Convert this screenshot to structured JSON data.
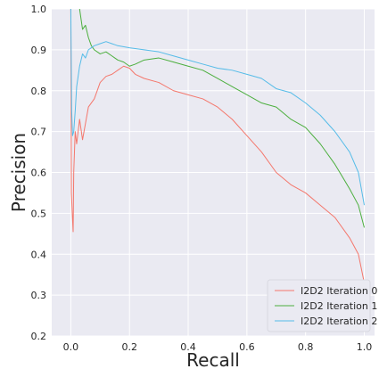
{
  "chart_data": {
    "type": "line",
    "title": "",
    "xlabel": "Recall",
    "ylabel": "Precision",
    "xlim": [
      -0.065,
      1.035
    ],
    "ylim": [
      0.2,
      1.0
    ],
    "x_ticks": [
      0.0,
      0.2,
      0.4,
      0.6,
      0.8,
      1.0
    ],
    "x_tick_labels": [
      "0.0",
      "0.2",
      "0.4",
      "0.6",
      "0.8",
      "1.0"
    ],
    "y_ticks": [
      0.2,
      0.3,
      0.4,
      0.5,
      0.6,
      0.7,
      0.8,
      0.9,
      1.0
    ],
    "y_tick_labels": [
      "0.2",
      "0.3",
      "0.4",
      "0.5",
      "0.6",
      "0.7",
      "0.8",
      "0.9",
      "1.0"
    ],
    "grid": true,
    "background": "#eaeaf2",
    "legend_position": "bottom-right",
    "series": [
      {
        "name": "I2D2 Iteration 0",
        "color": "#f4776c",
        "points": [
          [
            0.0,
            1.0
          ],
          [
            0.002,
            0.55
          ],
          [
            0.005,
            0.5
          ],
          [
            0.008,
            0.455
          ],
          [
            0.01,
            0.6
          ],
          [
            0.015,
            0.7
          ],
          [
            0.02,
            0.67
          ],
          [
            0.03,
            0.73
          ],
          [
            0.04,
            0.68
          ],
          [
            0.05,
            0.72
          ],
          [
            0.06,
            0.76
          ],
          [
            0.08,
            0.78
          ],
          [
            0.1,
            0.82
          ],
          [
            0.12,
            0.835
          ],
          [
            0.14,
            0.84
          ],
          [
            0.16,
            0.85
          ],
          [
            0.18,
            0.86
          ],
          [
            0.2,
            0.855
          ],
          [
            0.22,
            0.84
          ],
          [
            0.25,
            0.83
          ],
          [
            0.3,
            0.82
          ],
          [
            0.35,
            0.8
          ],
          [
            0.4,
            0.79
          ],
          [
            0.45,
            0.78
          ],
          [
            0.5,
            0.76
          ],
          [
            0.55,
            0.73
          ],
          [
            0.6,
            0.69
          ],
          [
            0.65,
            0.65
          ],
          [
            0.7,
            0.6
          ],
          [
            0.75,
            0.57
          ],
          [
            0.8,
            0.55
          ],
          [
            0.85,
            0.52
          ],
          [
            0.9,
            0.49
          ],
          [
            0.95,
            0.44
          ],
          [
            0.98,
            0.4
          ],
          [
            1.0,
            0.33
          ]
        ]
      },
      {
        "name": "I2D2 Iteration 1",
        "color": "#4caf3e",
        "points": [
          [
            0.03,
            1.0
          ],
          [
            0.04,
            0.95
          ],
          [
            0.05,
            0.96
          ],
          [
            0.06,
            0.93
          ],
          [
            0.07,
            0.91
          ],
          [
            0.08,
            0.9
          ],
          [
            0.1,
            0.89
          ],
          [
            0.12,
            0.895
          ],
          [
            0.14,
            0.885
          ],
          [
            0.16,
            0.875
          ],
          [
            0.18,
            0.87
          ],
          [
            0.2,
            0.86
          ],
          [
            0.22,
            0.865
          ],
          [
            0.25,
            0.875
          ],
          [
            0.3,
            0.88
          ],
          [
            0.35,
            0.87
          ],
          [
            0.4,
            0.86
          ],
          [
            0.45,
            0.85
          ],
          [
            0.5,
            0.83
          ],
          [
            0.55,
            0.81
          ],
          [
            0.6,
            0.79
          ],
          [
            0.65,
            0.77
          ],
          [
            0.7,
            0.76
          ],
          [
            0.75,
            0.73
          ],
          [
            0.8,
            0.71
          ],
          [
            0.85,
            0.67
          ],
          [
            0.9,
            0.62
          ],
          [
            0.95,
            0.56
          ],
          [
            0.98,
            0.52
          ],
          [
            1.0,
            0.465
          ]
        ]
      },
      {
        "name": "I2D2 Iteration 2",
        "color": "#56bce8",
        "points": [
          [
            0.0,
            1.0
          ],
          [
            0.003,
            0.75
          ],
          [
            0.006,
            0.69
          ],
          [
            0.01,
            0.7
          ],
          [
            0.015,
            0.75
          ],
          [
            0.02,
            0.81
          ],
          [
            0.03,
            0.86
          ],
          [
            0.04,
            0.89
          ],
          [
            0.05,
            0.88
          ],
          [
            0.06,
            0.9
          ],
          [
            0.08,
            0.91
          ],
          [
            0.1,
            0.915
          ],
          [
            0.12,
            0.92
          ],
          [
            0.14,
            0.915
          ],
          [
            0.16,
            0.91
          ],
          [
            0.2,
            0.905
          ],
          [
            0.25,
            0.9
          ],
          [
            0.3,
            0.895
          ],
          [
            0.35,
            0.885
          ],
          [
            0.4,
            0.875
          ],
          [
            0.45,
            0.865
          ],
          [
            0.5,
            0.855
          ],
          [
            0.55,
            0.85
          ],
          [
            0.6,
            0.84
          ],
          [
            0.65,
            0.83
          ],
          [
            0.7,
            0.805
          ],
          [
            0.75,
            0.795
          ],
          [
            0.8,
            0.77
          ],
          [
            0.85,
            0.74
          ],
          [
            0.9,
            0.7
          ],
          [
            0.95,
            0.65
          ],
          [
            0.98,
            0.6
          ],
          [
            1.0,
            0.52
          ]
        ]
      }
    ]
  }
}
